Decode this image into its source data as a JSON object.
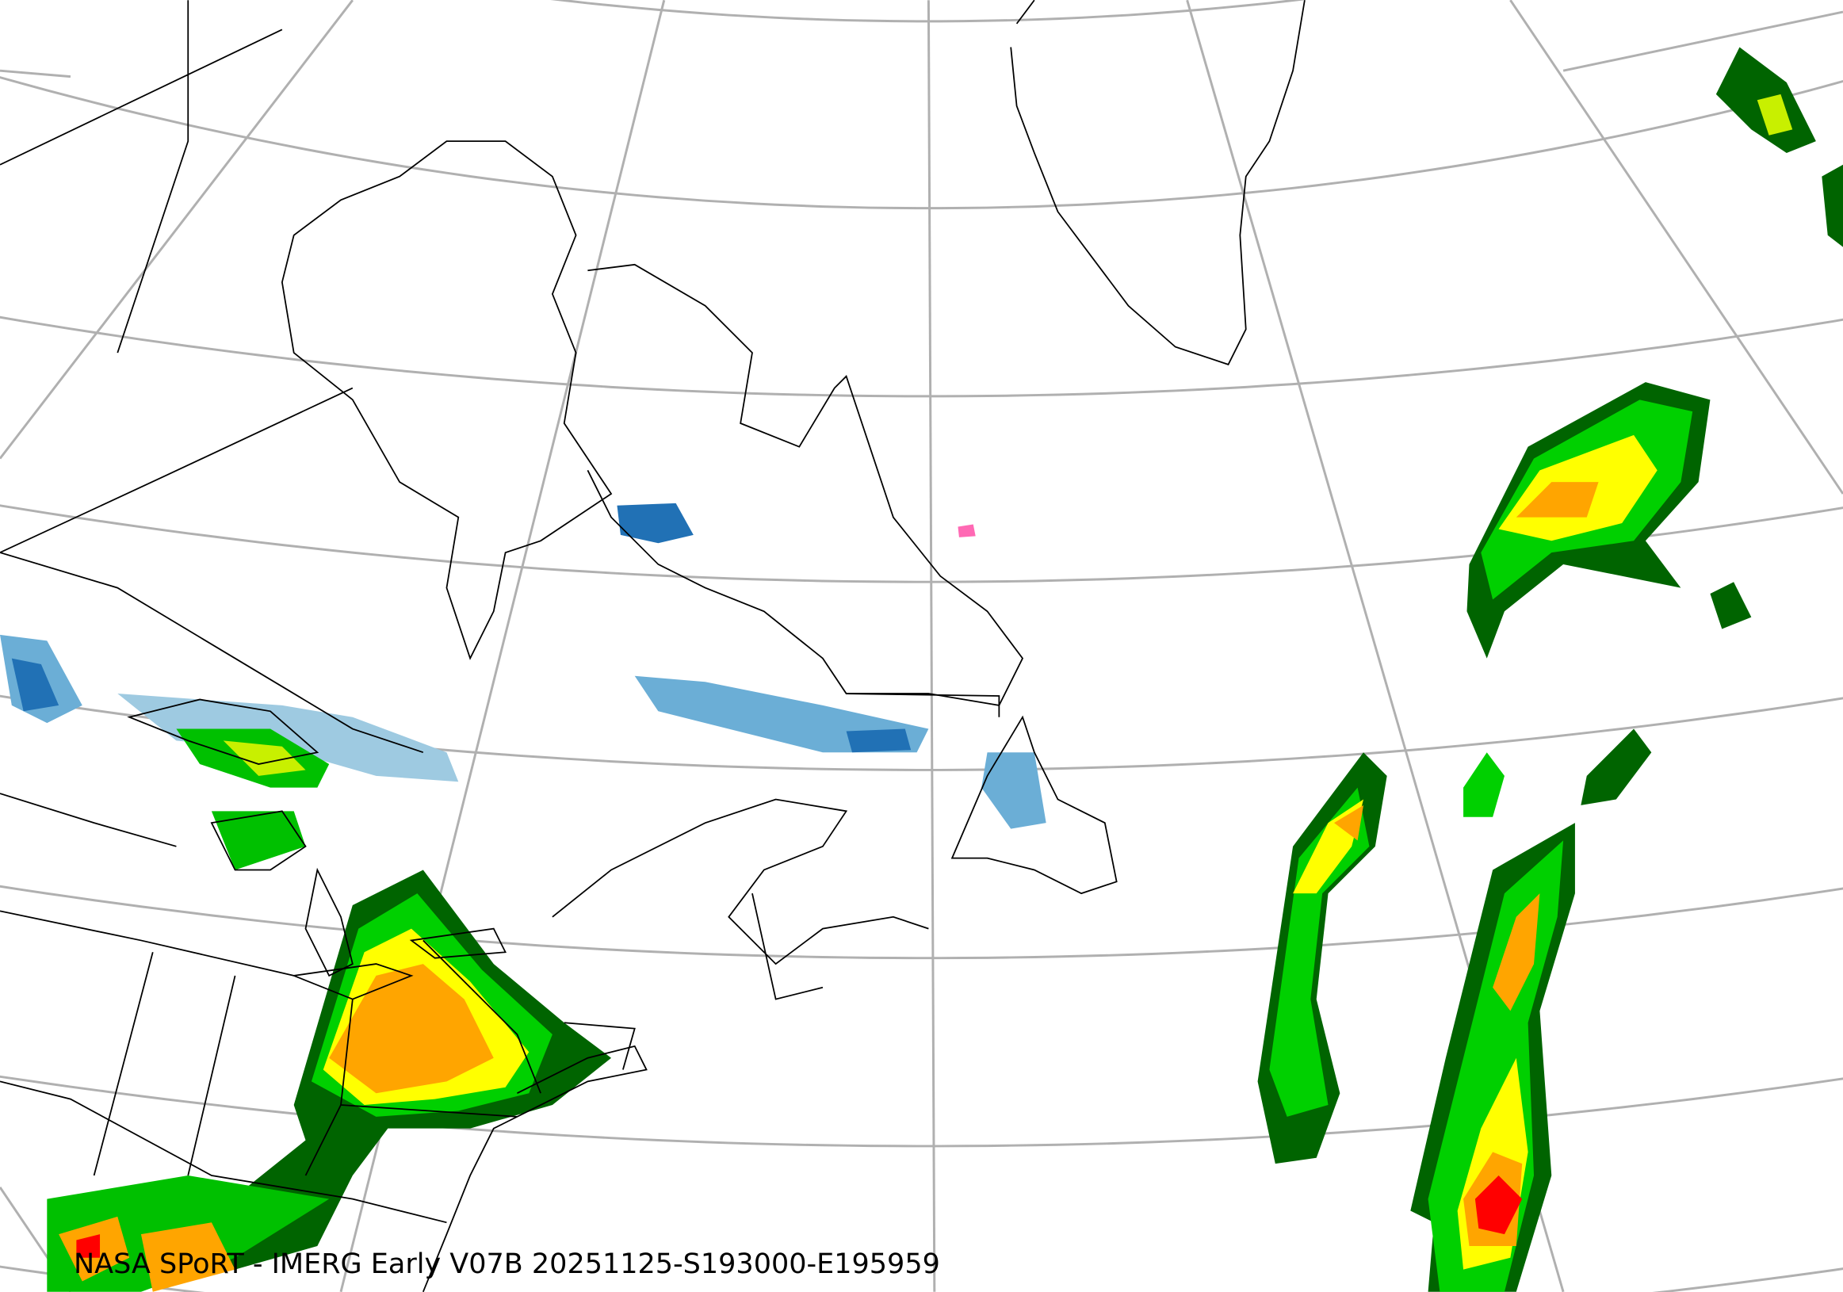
{
  "caption": "NASA SPoRT - IMERG Early V07B 20251125-S193000-E195959",
  "map": {
    "projection_style": "conic",
    "graticule_color": "#b0b0b0",
    "coastline_color": "#000000",
    "background": "#ffffff"
  },
  "precip_legend_colors": {
    "light_snow": "#c6dbef",
    "snow": "#6baed6",
    "heavy_snow": "#2171b5",
    "light_rain": "#006400",
    "rain": "#00d000",
    "moderate": "#ffff00",
    "heavy": "#ffa500",
    "very_heavy": "#ff4500",
    "extreme": "#ff0000",
    "mixed": "#ff69b4"
  }
}
